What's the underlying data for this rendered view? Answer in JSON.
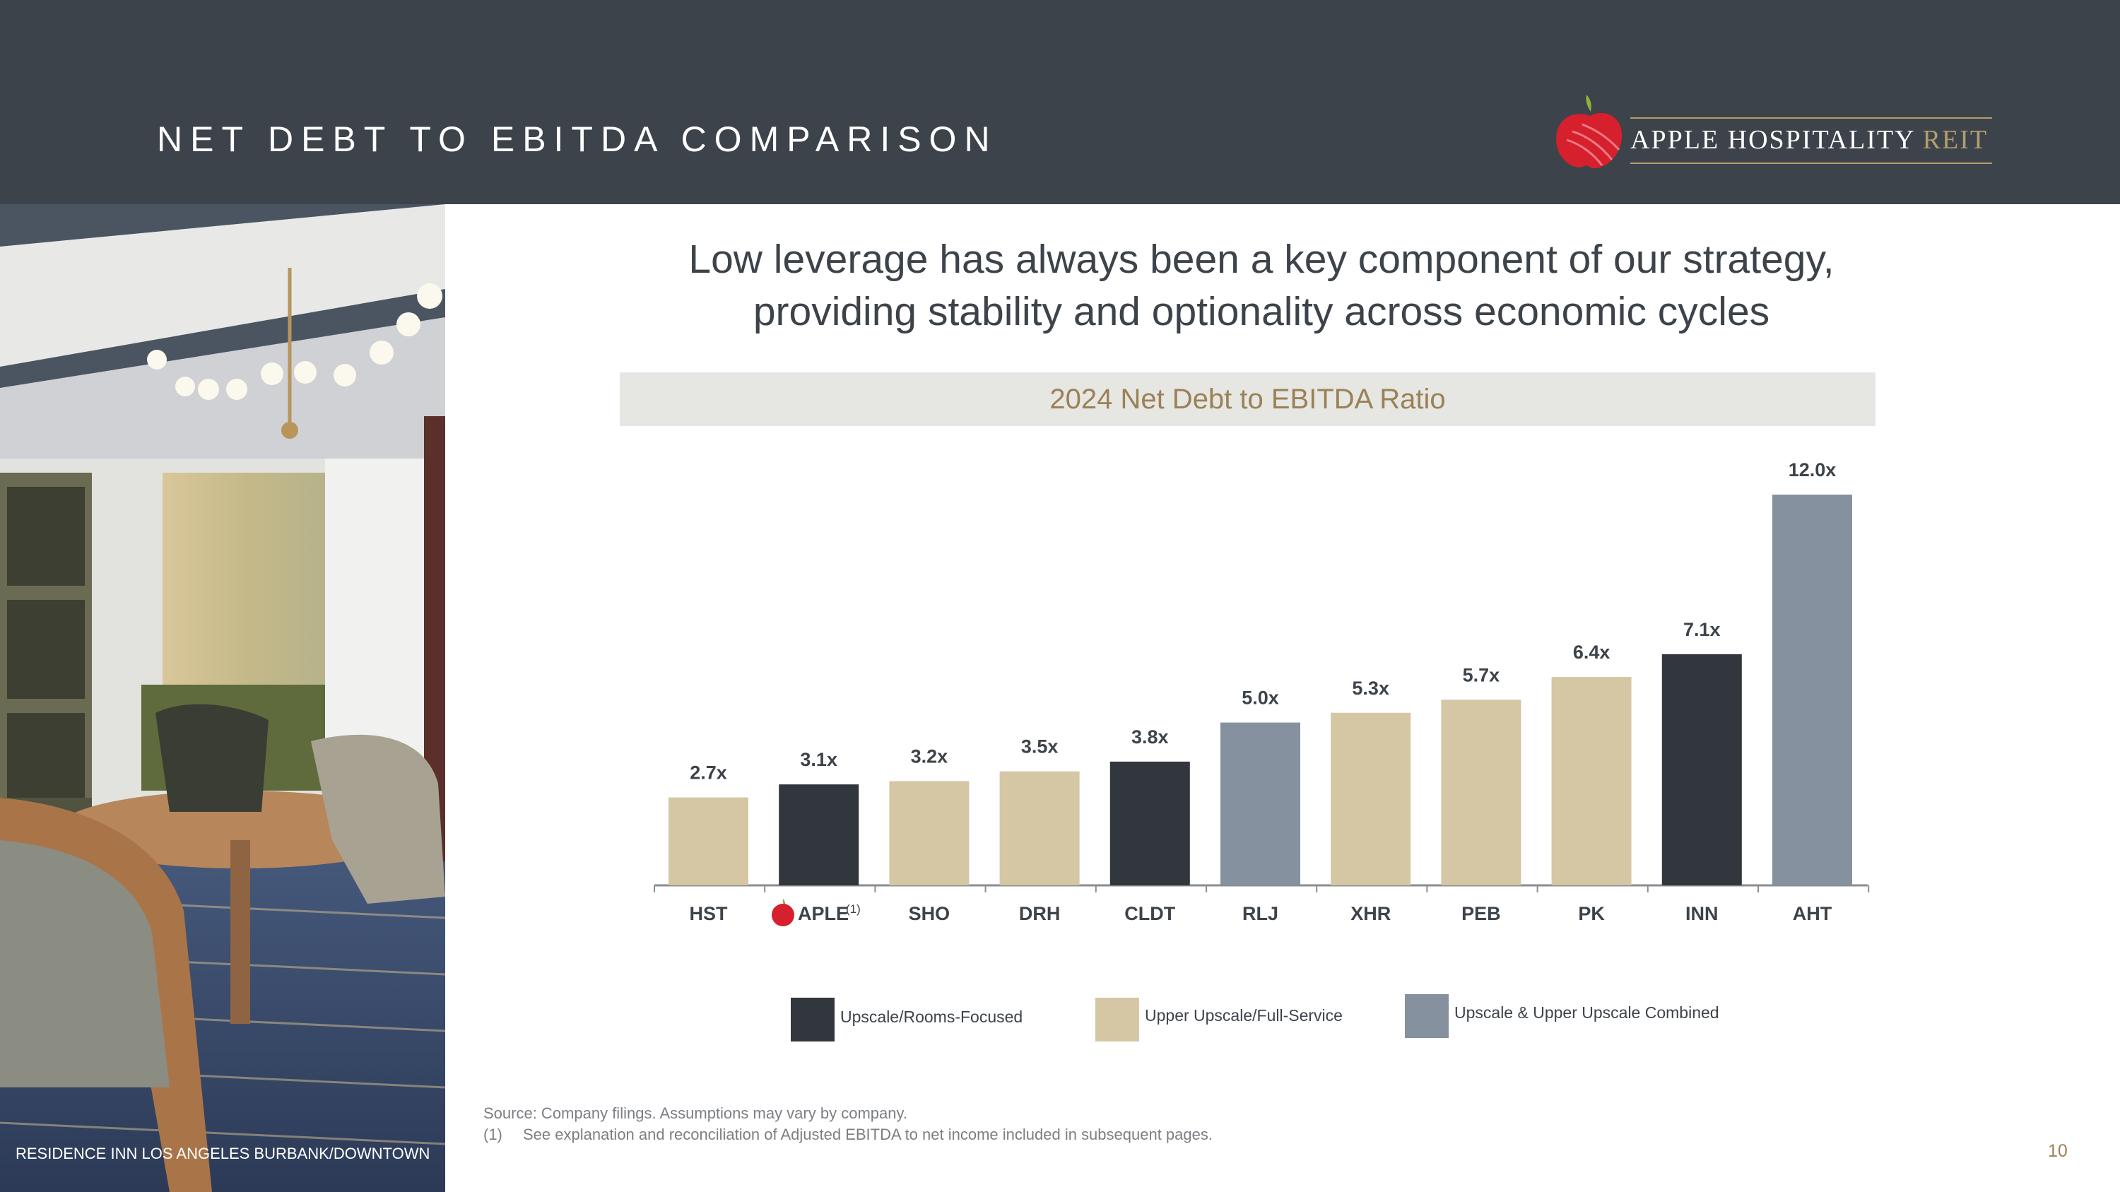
{
  "slide": {
    "title": "NET DEBT TO EBITDA COMPARISON",
    "logo_name": "APPLE HOSPITALITY",
    "logo_suffix": "REIT",
    "photo_caption": "RESIDENCE INN LOS ANGELES BURBANK/DOWNTOWN",
    "headline_line1": "Low leverage has always been a key component of our strategy,",
    "headline_line2": "providing stability and optionality across economic cycles",
    "chart_subtitle": "2024 Net Debt to EBITDA Ratio",
    "source_line": "Source: Company filings. Assumptions may vary by company.",
    "footnote_marker": "(1)",
    "footnote_text": "See explanation and reconciliation of Adjusted EBITDA to net income included in subsequent pages.",
    "page_number": "10",
    "logo_icon": "apple-logo-icon"
  },
  "chart_data": {
    "type": "bar",
    "title": "2024 Net Debt to EBITDA Ratio",
    "xlabel": "",
    "ylabel": "",
    "ylim": [
      0,
      12.0
    ],
    "categories": [
      "HST",
      "APLE",
      "SHO",
      "DRH",
      "CLDT",
      "RLJ",
      "XHR",
      "PEB",
      "PK",
      "INN",
      "AHT"
    ],
    "values": [
      2.7,
      3.1,
      3.2,
      3.5,
      3.8,
      5.0,
      5.3,
      5.7,
      6.4,
      7.1,
      12.0
    ],
    "labels": [
      "2.7x",
      "3.1x",
      "3.2x",
      "3.5x",
      "3.8x",
      "5.0x",
      "5.3x",
      "5.7x",
      "6.4x",
      "7.1x",
      "12.0x"
    ],
    "segments": [
      "Upper Upscale/Full-Service",
      "Upscale/Rooms-Focused",
      "Upper Upscale/Full-Service",
      "Upper Upscale/Full-Service",
      "Upscale/Rooms-Focused",
      "Upscale & Upper Upscale Combined",
      "Upper Upscale/Full-Service",
      "Upper Upscale/Full-Service",
      "Upper Upscale/Full-Service",
      "Upscale/Rooms-Focused",
      "Upscale & Upper Upscale Combined"
    ],
    "aple_footnote": "(1)",
    "legend": [
      {
        "name": "Upscale/Rooms-Focused",
        "color": "#32363d"
      },
      {
        "name": "Upper Upscale/Full-Service",
        "color": "#d5c6a4"
      },
      {
        "name": "Upscale & Upper Upscale Combined",
        "color": "#85919e"
      }
    ]
  }
}
